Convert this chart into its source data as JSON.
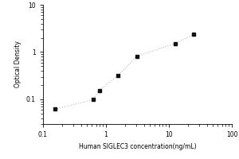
{
  "x_data": [
    0.156,
    0.625,
    0.781,
    1.563,
    3.125,
    12.5,
    25.0
  ],
  "y_data": [
    0.062,
    0.098,
    0.155,
    0.32,
    0.82,
    1.52,
    2.35
  ],
  "xlabel": "Human SIGLEC3 concentration(ng/mL)",
  "ylabel": "Optical Density",
  "xlim": [
    0.1,
    100
  ],
  "ylim": [
    0.03,
    10
  ],
  "x_ticks": [
    0.1,
    1,
    10,
    100
  ],
  "x_tick_labels": [
    "0.1",
    "1",
    "10",
    "100"
  ],
  "y_ticks": [
    0.1,
    1,
    10
  ],
  "y_tick_labels": [
    "0.1",
    "1",
    "10"
  ],
  "line_color": "#bbbbbb",
  "marker_color": "#111111",
  "marker_style": "s",
  "marker_size": 3.5,
  "line_style": ":",
  "background_color": "#ffffff",
  "label_fontsize": 5.5,
  "tick_fontsize": 5.5
}
